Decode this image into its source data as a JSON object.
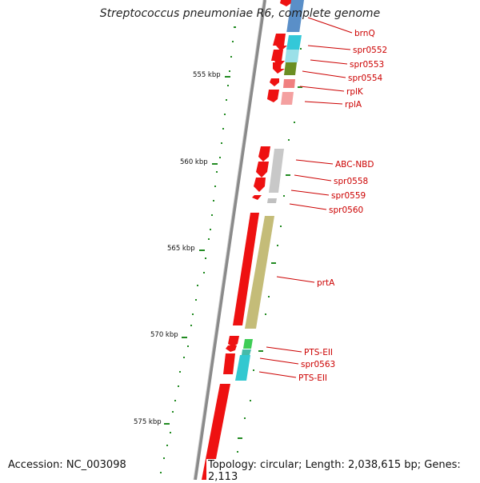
{
  "title": "Streptococcus pneumoniae R6, complete genome",
  "footer": {
    "accession": "Accession: NC_003098",
    "topology": "Topology: circular; Length: 2,038,615 bp; Genes: 2,113"
  },
  "kbp_ticks": [
    "555 kbp",
    "560 kbp",
    "565 kbp",
    "570 kbp",
    "575 kbp"
  ],
  "gene_labels": [
    "brnQ",
    "spr0552",
    "spr0553",
    "spr0554",
    "rplK",
    "rplA",
    "ABC-NBD",
    "spr0558",
    "spr0559",
    "spr0560",
    "prtA",
    "PTS-EII",
    "spr0563",
    "PTS-EII"
  ],
  "colors": {
    "backbone": "#8a8a8a",
    "gene_arrow": "#ee1111",
    "tick": "#228b22",
    "label": "#cc0000"
  }
}
